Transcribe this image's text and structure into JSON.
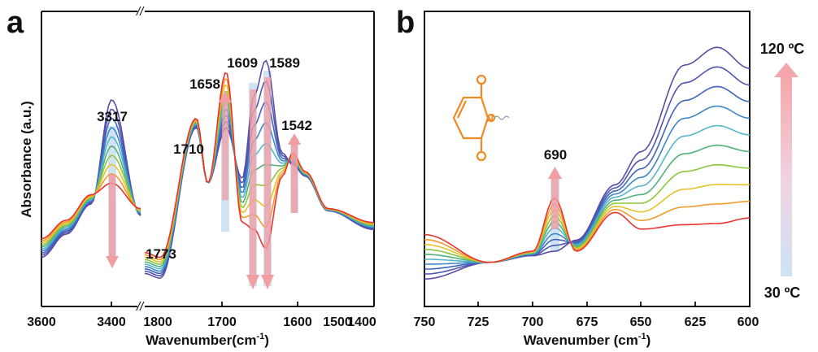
{
  "chart_data": [
    {
      "panel_label": "a",
      "type": "line",
      "xlabel": "Wavenumber(cm",
      "xlabel_sup": "-1",
      "xlabel_close": ")",
      "ylabel": "Absorbance (a.u.)",
      "xlim_segments": [
        [
          3600,
          3200
        ],
        [
          1800,
          1400
        ]
      ],
      "xticks": [
        "3600",
        "3400",
        "1800",
        "1700",
        "1600",
        "1500",
        "1400"
      ],
      "axis_break": "//",
      "peak_labels": [
        "3317",
        "1773",
        "1710",
        "1658",
        "1609",
        "1589",
        "1542"
      ],
      "peak_positions": [
        3317,
        1773,
        1710,
        1658,
        1609,
        1589,
        1542
      ],
      "series_count": 10,
      "series_colors": [
        "#5b4ba6",
        "#4f55b0",
        "#3e64bd",
        "#3c87c9",
        "#56b5cc",
        "#52b07a",
        "#8cc63f",
        "#e6c22a",
        "#f29a2e",
        "#e8342f"
      ],
      "trend_arrows": {
        "3317": "down",
        "1658": "up",
        "1609": "down",
        "1589": "down",
        "1542": "up"
      },
      "series": [
        {
          "name": "",
          "x_3600_3200": [
            3600,
            3500,
            3400,
            3317,
            3200
          ],
          "y_3600_3200": [
            0.1,
            0.2,
            0.33,
            0.78,
            0.28
          ],
          "x_1800_1400": [
            1800,
            1773,
            1710,
            1690,
            1658,
            1630,
            1609,
            1589,
            1560,
            1542,
            1520,
            1480,
            1400
          ],
          "y_1800_1400": [
            0.03,
            0.01,
            0.66,
            0.42,
            0.66,
            0.44,
            0.8,
            0.95,
            0.55,
            0.5,
            0.45,
            0.3,
            0.22
          ]
        },
        {
          "name": "",
          "x_3600_3200": [
            3600,
            3500,
            3400,
            3317,
            3200
          ],
          "y_3600_3200": [
            0.18,
            0.26,
            0.37,
            0.42,
            0.31
          ],
          "x_1800_1400": [
            1800,
            1773,
            1710,
            1690,
            1658,
            1630,
            1609,
            1589,
            1560,
            1542,
            1520,
            1480,
            1400
          ],
          "y_1800_1400": [
            0.12,
            0.1,
            0.7,
            0.42,
            0.9,
            0.25,
            0.22,
            0.14,
            0.45,
            0.55,
            0.47,
            0.31,
            0.25
          ]
        }
      ]
    },
    {
      "panel_label": "b",
      "type": "line",
      "xlabel": "Wavenumber (cm",
      "xlabel_sup": "-1",
      "xlabel_close": ")",
      "xlim": [
        750,
        600
      ],
      "xticks": [
        "750",
        "725",
        "700",
        "675",
        "650",
        "625",
        "600"
      ],
      "peak_labels": [
        "690"
      ],
      "peak_positions": [
        690
      ],
      "trend_arrows": {
        "690": "up"
      },
      "series_colors": [
        "#5b4ba6",
        "#4f55b0",
        "#3e64bd",
        "#3c87c9",
        "#56b5cc",
        "#52b07a",
        "#8cc63f",
        "#e6c22a",
        "#f29a2e",
        "#e8342f"
      ],
      "temperature_scale": {
        "top": "120 ºC",
        "bottom": "30 ºC",
        "direction": "up"
      },
      "inset": "maleimide structure",
      "series": [
        {
          "name": "",
          "x": [
            750,
            720,
            700,
            690,
            680,
            662,
            650,
            630,
            615,
            600
          ],
          "y": [
            0.05,
            0.2,
            0.26,
            0.3,
            0.4,
            0.9,
            1.2,
            1.98,
            2.14,
            1.95
          ]
        },
        {
          "name": "",
          "x": [
            750,
            720,
            700,
            690,
            680,
            662,
            650,
            630,
            615,
            600
          ],
          "y": [
            0.45,
            0.2,
            0.3,
            0.78,
            0.3,
            0.65,
            0.5,
            0.54,
            0.55,
            0.6
          ]
        }
      ]
    }
  ]
}
